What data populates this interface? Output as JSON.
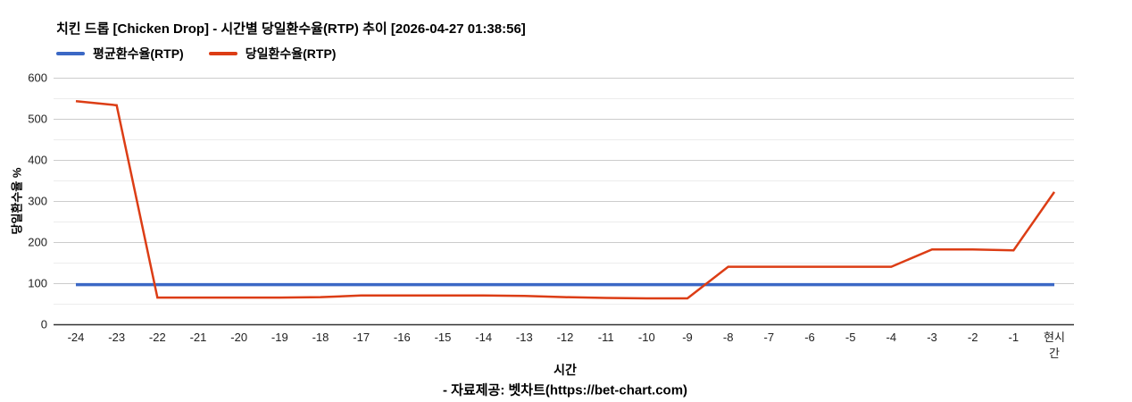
{
  "header": {
    "title": "치킨 드롭 [Chicken Drop] - 시간별 당일환수율(RTP) 추이 [2026-04-27 01:38:56]"
  },
  "legend": [
    {
      "key": "avg-rtp",
      "label": "평균환수율(RTP)",
      "color": "#3b68c5"
    },
    {
      "key": "daily-rtp",
      "label": "당일환수율(RTP)",
      "color": "#dc3d15"
    }
  ],
  "footer": {
    "source": "- 자료제공: 벳차트(https://bet-chart.com)"
  },
  "chart_data": {
    "type": "line",
    "title": "치킨 드롭 [Chicken Drop] - 시간별 당일환수율(RTP) 추이 [2026-04-27 01:38:56]",
    "xlabel": "시간",
    "ylabel": "당일환수율 %",
    "categories": [
      "-24",
      "-23",
      "-22",
      "-21",
      "-20",
      "-19",
      "-18",
      "-17",
      "-16",
      "-15",
      "-14",
      "-13",
      "-12",
      "-11",
      "-10",
      "-9",
      "-8",
      "-7",
      "-6",
      "-5",
      "-4",
      "-3",
      "-2",
      "-1",
      "현시간"
    ],
    "series": [
      {
        "name": "평균환수율(RTP)",
        "key": "avg-rtp",
        "color": "#3b68c5",
        "values": [
          96.5,
          96.5,
          96.5,
          96.5,
          96.5,
          96.5,
          96.5,
          96.5,
          96.5,
          96.5,
          96.5,
          96.5,
          96.5,
          96.5,
          96.5,
          96.5,
          96.5,
          96.5,
          96.5,
          96.5,
          96.5,
          96.5,
          96.5,
          96.5,
          96.5
        ]
      },
      {
        "name": "당일환수율(RTP)",
        "key": "daily-rtp",
        "color": "#dc3d15",
        "values": [
          543,
          533,
          65,
          65,
          65,
          65,
          66,
          70,
          70,
          70,
          70,
          69,
          66,
          64,
          63,
          63,
          140,
          140,
          140,
          140,
          140,
          182,
          182,
          180,
          322
        ]
      }
    ],
    "ylim": [
      0,
      600
    ],
    "y_ticks": [
      0,
      100,
      200,
      300,
      400,
      500,
      600
    ],
    "minor_grid_step": 50,
    "grid": true,
    "legend_position": "top-left",
    "colors": {
      "major_grid": "#cccccc",
      "minor_grid": "#ececec",
      "axis_line": "#333333",
      "tick_text": "#222222"
    }
  }
}
